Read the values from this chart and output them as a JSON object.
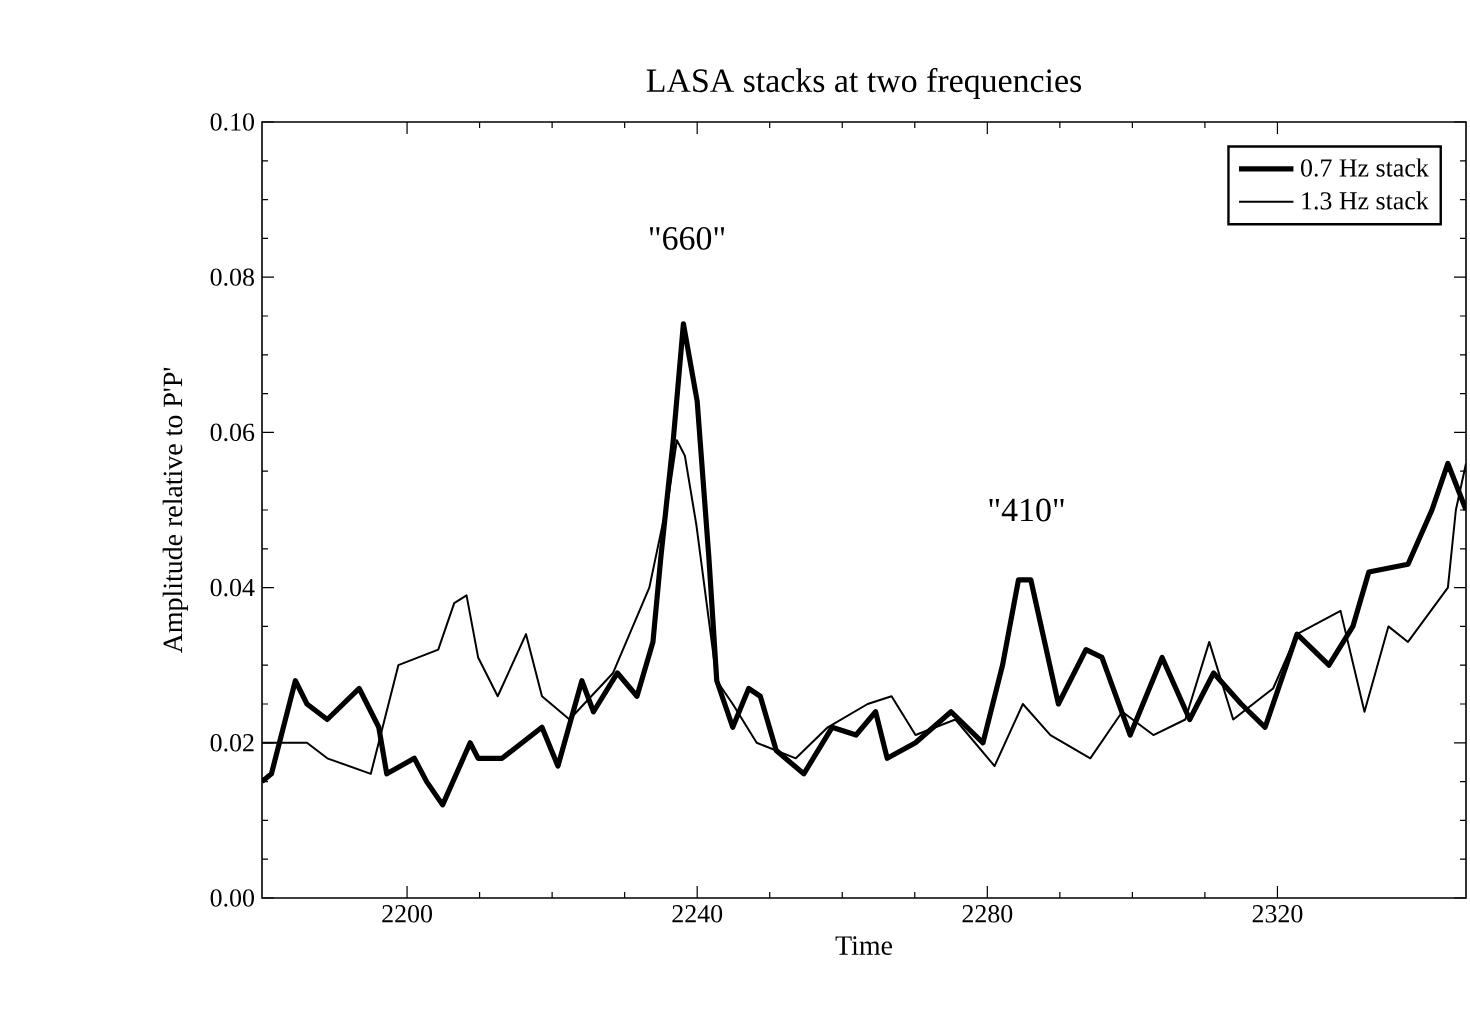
{
  "chart_data": {
    "type": "line",
    "title": "LASA stacks at two frequencies",
    "xlabel": "Time",
    "ylabel": "Amplitude relative to P'P'",
    "xlim": [
      2180,
      2346
    ],
    "ylim": [
      0,
      0.1
    ],
    "xticks": [
      2200,
      2240,
      2280,
      2320
    ],
    "yticks": [
      {
        "value": 0,
        "label": "0.00"
      },
      {
        "value": 0.02,
        "label": "0.02"
      },
      {
        "value": 0.04,
        "label": "0.04"
      },
      {
        "value": 0.06,
        "label": "0.06"
      },
      {
        "value": 0.08,
        "label": "0.08"
      },
      {
        "value": 0.1,
        "label": "0.10"
      }
    ],
    "grid": false,
    "legend": "top right",
    "marker": "none",
    "line_style": "solid",
    "annotations": [
      "\"660\"",
      "\"410\""
    ],
    "series": [
      {
        "name": "0.7 Hz stack",
        "color": "#000000",
        "x": [
          2180,
          2181.3,
          2184.6,
          2186.2,
          2189,
          2193.4,
          2196.1,
          2197.2,
          2201,
          2202.7,
          2204.9,
          2208.7,
          2209.8,
          2213.1,
          2218.6,
          2220.8,
          2224.1,
          2225.7,
          2229,
          2231.7,
          2233.9,
          2235,
          2236.7,
          2238.1,
          2240,
          2241.6,
          2242.7,
          2244.9,
          2247.1,
          2248.7,
          2250.9,
          2254.7,
          2258.6,
          2261.9,
          2264.6,
          2266.2,
          2270.1,
          2275,
          2279.4,
          2282.1,
          2284.3,
          2286,
          2289.8,
          2293.6,
          2295.8,
          2299.7,
          2304.1,
          2307.9,
          2311.2,
          2315,
          2318.3,
          2322.7,
          2327.1,
          2330.4,
          2332.6,
          2338,
          2341.3,
          2343.5,
          2346
        ],
        "values": [
          0.015,
          0.016,
          0.028,
          0.025,
          0.023,
          0.027,
          0.022,
          0.016,
          0.018,
          0.015,
          0.012,
          0.02,
          0.018,
          0.018,
          0.022,
          0.017,
          0.028,
          0.024,
          0.029,
          0.026,
          0.033,
          0.044,
          0.059,
          0.074,
          0.064,
          0.044,
          0.028,
          0.022,
          0.027,
          0.026,
          0.019,
          0.016,
          0.022,
          0.021,
          0.024,
          0.018,
          0.02,
          0.024,
          0.02,
          0.03,
          0.041,
          0.041,
          0.025,
          0.032,
          0.031,
          0.021,
          0.031,
          0.023,
          0.029,
          0.025,
          0.022,
          0.034,
          0.03,
          0.035,
          0.042,
          0.043,
          0.05,
          0.056,
          0.05
        ]
      },
      {
        "name": "1.3 Hz stack",
        "color": "#000000",
        "x": [
          2180,
          2186.2,
          2189,
          2195,
          2198.8,
          2204.3,
          2206.5,
          2208.2,
          2209.8,
          2212.5,
          2216.4,
          2218.6,
          2222.4,
          2228.4,
          2233.4,
          2236.1,
          2237.2,
          2238.3,
          2239.9,
          2242.7,
          2244.9,
          2248.2,
          2253.6,
          2258,
          2263.5,
          2266.8,
          2270.1,
          2275.6,
          2281,
          2284.9,
          2288.7,
          2294.2,
          2298.6,
          2302.9,
          2307.3,
          2310.6,
          2313.9,
          2319.4,
          2322.7,
          2328.7,
          2332,
          2335.3,
          2338,
          2343.5,
          2344.6,
          2346
        ],
        "values": [
          0.02,
          0.02,
          0.018,
          0.016,
          0.03,
          0.032,
          0.038,
          0.039,
          0.031,
          0.026,
          0.034,
          0.026,
          0.023,
          0.029,
          0.04,
          0.052,
          0.059,
          0.057,
          0.048,
          0.028,
          0.025,
          0.02,
          0.018,
          0.022,
          0.025,
          0.026,
          0.021,
          0.023,
          0.017,
          0.025,
          0.021,
          0.018,
          0.024,
          0.021,
          0.023,
          0.033,
          0.023,
          0.027,
          0.034,
          0.037,
          0.024,
          0.035,
          0.033,
          0.04,
          0.05,
          0.056
        ]
      }
    ]
  }
}
